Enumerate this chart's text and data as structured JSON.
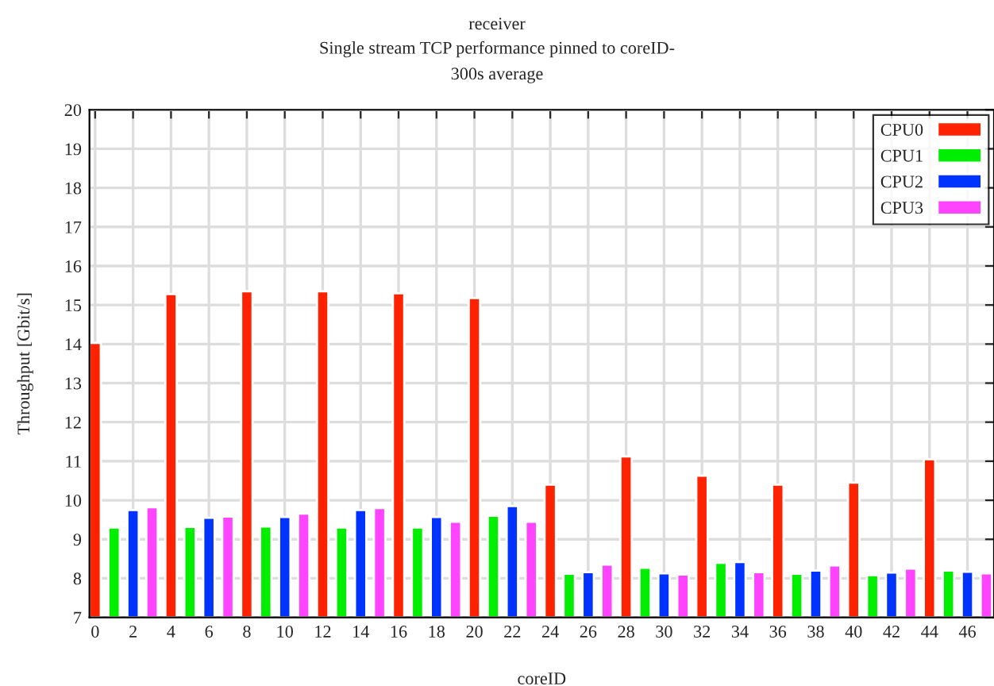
{
  "chart_data": {
    "type": "bar",
    "title": "receiver",
    "subtitle": "Single stream TCP performance pinned to coreID-\n300s average",
    "xlabel": "coreID",
    "ylabel": "Throughput [Gbit/s]",
    "xlim": [
      -0.3,
      47.4
    ],
    "xticks": [
      0,
      2,
      4,
      6,
      8,
      10,
      12,
      14,
      16,
      18,
      20,
      22,
      24,
      26,
      28,
      30,
      32,
      34,
      36,
      38,
      40,
      42,
      44,
      46
    ],
    "ylim": [
      7,
      20
    ],
    "yticks": [
      7,
      8,
      9,
      10,
      11,
      12,
      13,
      14,
      15,
      16,
      17,
      18,
      19,
      20
    ],
    "grid": true,
    "legend": "top right",
    "series": [
      {
        "name": "CPU0",
        "color": "#ff2200",
        "x": [
          0,
          4,
          8,
          12,
          16,
          20,
          24,
          28,
          32,
          36,
          40,
          44
        ],
        "values": [
          14.03,
          15.28,
          15.35,
          15.35,
          15.3,
          15.18,
          10.4,
          11.12,
          10.63,
          10.4,
          10.45,
          11.05
        ]
      },
      {
        "name": "CPU1",
        "color": "#00ee00",
        "x": [
          1,
          5,
          9,
          13,
          17,
          21,
          25,
          29,
          33,
          37,
          41,
          45
        ],
        "values": [
          9.3,
          9.32,
          9.33,
          9.3,
          9.3,
          9.6,
          8.12,
          8.27,
          8.4,
          8.12,
          8.08,
          8.2
        ]
      },
      {
        "name": "CPU2",
        "color": "#0033ff",
        "x": [
          2,
          6,
          10,
          14,
          18,
          22,
          26,
          30,
          34,
          38,
          42,
          46
        ],
        "values": [
          9.75,
          9.55,
          9.57,
          9.75,
          9.57,
          9.85,
          8.16,
          8.13,
          8.42,
          8.2,
          8.15,
          8.17
        ]
      },
      {
        "name": "CPU3",
        "color": "#ff44ff",
        "x": [
          3,
          7,
          11,
          15,
          19,
          23,
          27,
          31,
          35,
          39,
          43,
          47
        ],
        "values": [
          9.82,
          9.58,
          9.66,
          9.8,
          9.45,
          9.45,
          8.35,
          8.1,
          8.16,
          8.33,
          8.25,
          8.13
        ]
      }
    ]
  }
}
